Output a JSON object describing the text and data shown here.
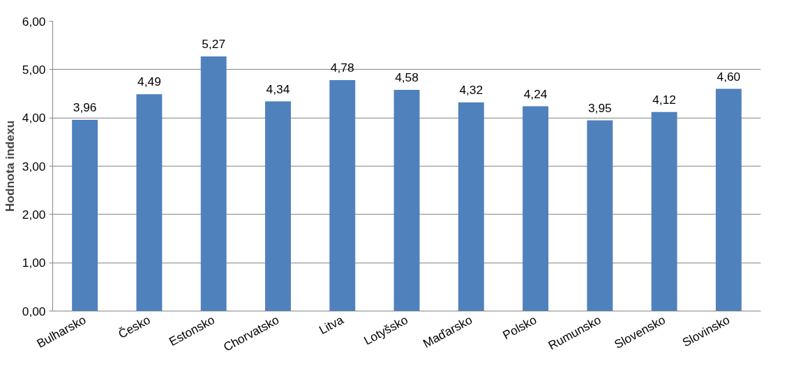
{
  "chart_data": {
    "type": "bar",
    "ylabel": "Hodnota indexu",
    "categories": [
      "Bulharsko",
      "Česko",
      "Estonsko",
      "Chorvatsko",
      "Litva",
      "Lotyšsko",
      "Maďarsko",
      "Polsko",
      "Rumunsko",
      "Slovensko",
      "Slovinsko"
    ],
    "values": [
      3.96,
      4.49,
      5.27,
      4.34,
      4.78,
      4.58,
      4.32,
      4.24,
      3.95,
      4.12,
      4.6
    ],
    "value_labels": [
      "3,96",
      "4,49",
      "5,27",
      "4,34",
      "4,78",
      "4,58",
      "4,32",
      "4,24",
      "3,95",
      "4,12",
      "4,60"
    ],
    "color": "#4f81bd",
    "ylim": [
      0,
      6
    ],
    "yticks": [
      {
        "value": 0,
        "label": "0,00"
      },
      {
        "value": 1,
        "label": "1,00"
      },
      {
        "value": 2,
        "label": "2,00"
      },
      {
        "value": 3,
        "label": "3,00"
      },
      {
        "value": 4,
        "label": "4,00"
      },
      {
        "value": 5,
        "label": "5,00"
      },
      {
        "value": 6,
        "label": "6,00"
      }
    ],
    "grid": "y"
  }
}
